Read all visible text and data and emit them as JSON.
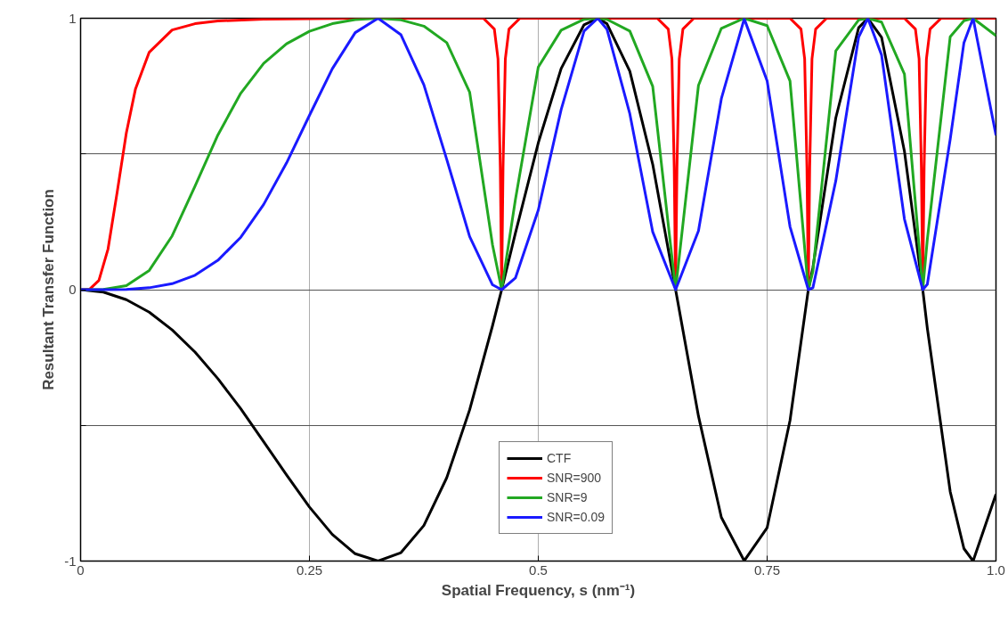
{
  "chart_data": {
    "type": "line",
    "xlabel": "Spatial Frequency, s (nm⁻¹)",
    "ylabel": "Resultant Transfer Function",
    "x": [
      0,
      0.025,
      0.05,
      0.075,
      0.1,
      0.125,
      0.15,
      0.175,
      0.2,
      0.225,
      0.25,
      0.275,
      0.3,
      0.325,
      0.35,
      0.375,
      0.4,
      0.425,
      0.45,
      0.46,
      0.475,
      0.5,
      0.525,
      0.55,
      0.565,
      0.575,
      0.6,
      0.625,
      0.65,
      0.675,
      0.7,
      0.725,
      0.75,
      0.775,
      0.795,
      0.8,
      0.825,
      0.85,
      0.86,
      0.875,
      0.9,
      0.92,
      0.925,
      0.95,
      0.965,
      0.975,
      1.0
    ],
    "series": [
      {
        "name": "CTF",
        "color": "#000000",
        "values": [
          0,
          -0.009,
          -0.037,
          -0.083,
          -0.148,
          -0.23,
          -0.328,
          -0.439,
          -0.56,
          -0.683,
          -0.801,
          -0.902,
          -0.973,
          -1.0,
          -0.969,
          -0.869,
          -0.693,
          -0.443,
          -0.133,
          0,
          0.208,
          0.541,
          0.815,
          0.976,
          1.0,
          0.98,
          0.805,
          0.462,
          0,
          -0.466,
          -0.839,
          -0.999,
          -0.877,
          -0.482,
          0,
          0.081,
          0.633,
          0.965,
          1.0,
          0.93,
          0.51,
          0,
          -0.142,
          -0.744,
          -0.954,
          -1.0,
          -0.754
        ]
      },
      {
        "name": "SNR=900",
        "color": "#ff0000",
        "x": [
          0,
          0.01,
          0.02,
          0.03,
          0.04,
          0.05,
          0.06,
          0.075,
          0.1,
          0.125,
          0.15,
          0.2,
          0.3,
          0.44,
          0.452,
          0.456,
          0.4585,
          0.46,
          0.4615,
          0.464,
          0.468,
          0.48,
          0.63,
          0.642,
          0.646,
          0.6485,
          0.65,
          0.6515,
          0.654,
          0.658,
          0.67,
          0.775,
          0.787,
          0.791,
          0.7935,
          0.795,
          0.7965,
          0.799,
          0.803,
          0.815,
          0.9,
          0.912,
          0.916,
          0.9185,
          0.92,
          0.9215,
          0.924,
          0.928,
          0.94,
          1.0
        ],
        "values": [
          0,
          0.002,
          0.034,
          0.15,
          0.36,
          0.578,
          0.74,
          0.875,
          0.957,
          0.98,
          0.99,
          0.997,
          1.0,
          1.0,
          0.96,
          0.85,
          0.45,
          0,
          0.45,
          0.85,
          0.96,
          1.0,
          1.0,
          0.96,
          0.85,
          0.45,
          0,
          0.45,
          0.85,
          0.96,
          1.0,
          1.0,
          0.96,
          0.85,
          0.45,
          0,
          0.45,
          0.85,
          0.96,
          1.0,
          1.0,
          0.96,
          0.85,
          0.45,
          0,
          0.45,
          0.85,
          0.96,
          1.0,
          1.0
        ]
      },
      {
        "name": "SNR=9",
        "color": "#22a822",
        "values": [
          0,
          0.001,
          0.015,
          0.071,
          0.198,
          0.381,
          0.57,
          0.724,
          0.834,
          0.906,
          0.952,
          0.98,
          0.995,
          1.0,
          0.994,
          0.971,
          0.91,
          0.728,
          0.165,
          0,
          0.332,
          0.82,
          0.956,
          0.996,
          1.0,
          0.996,
          0.953,
          0.749,
          0,
          0.753,
          0.963,
          1.0,
          0.973,
          0.769,
          0,
          0.068,
          0.88,
          0.994,
          1.0,
          0.986,
          0.794,
          0,
          0.185,
          0.932,
          0.991,
          1.0,
          0.936
        ]
      },
      {
        "name": "SNR=0.09",
        "color": "#1a1aff",
        "values": [
          0,
          0,
          0.001,
          0.007,
          0.022,
          0.053,
          0.108,
          0.193,
          0.314,
          0.467,
          0.642,
          0.814,
          0.947,
          1.0,
          0.939,
          0.755,
          0.48,
          0.196,
          0.018,
          0,
          0.043,
          0.293,
          0.664,
          0.953,
          1.0,
          0.96,
          0.648,
          0.213,
          0,
          0.217,
          0.704,
          0.998,
          0.769,
          0.232,
          0,
          0.007,
          0.401,
          0.931,
          1.0,
          0.865,
          0.26,
          0,
          0.02,
          0.554,
          0.91,
          1.0,
          0.569
        ]
      }
    ],
    "xlim": [
      0,
      1.0
    ],
    "ylim": [
      -1,
      1
    ],
    "xticks": [
      0,
      0.25,
      0.5,
      0.75,
      {
        "value": 1.0,
        "label": "1.0"
      }
    ],
    "yticks": [
      -1,
      {
        "value": -0.5,
        "label": null
      },
      0,
      {
        "value": 0.5,
        "label": null
      },
      1
    ],
    "grid": true,
    "legend": "bottom",
    "marker": "none",
    "line_style": "solid"
  }
}
